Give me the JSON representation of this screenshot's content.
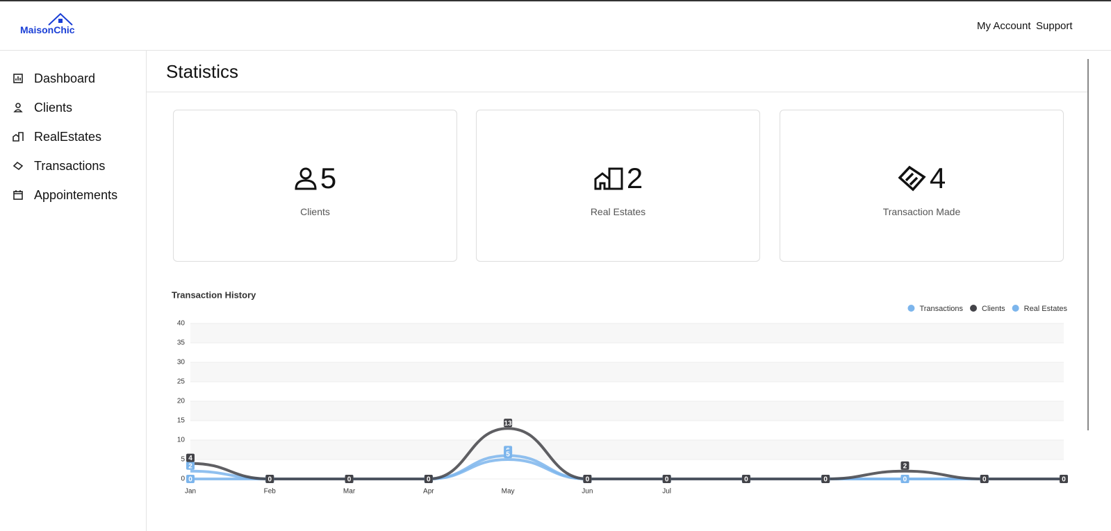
{
  "header": {
    "logo": "MaisonChic",
    "links": [
      "My Account",
      "Support"
    ]
  },
  "sidebar": {
    "items": [
      "Dashboard",
      "Clients",
      "RealEstates",
      "Transactions",
      "Appointements"
    ]
  },
  "page_title": "Statistics",
  "cards": [
    {
      "value": 5,
      "label": "Clients"
    },
    {
      "value": 2,
      "label": "Real Estates"
    },
    {
      "value": 4,
      "label": "Transaction Made"
    }
  ],
  "chart_data": {
    "type": "line",
    "title": "Transaction History",
    "categories": [
      "Jan",
      "Feb",
      "Mar",
      "Apr",
      "May",
      "Jun",
      "Jul",
      null,
      null,
      null,
      null,
      null
    ],
    "series": [
      {
        "name": "Transactions",
        "color": "#7cb5ec",
        "values": [
          0,
          0,
          0,
          0,
          6,
          0,
          0,
          0,
          0,
          0,
          0,
          0
        ]
      },
      {
        "name": "Clients",
        "color": "#434348",
        "values": [
          4,
          0,
          0,
          0,
          13,
          0,
          0,
          0,
          0,
          2,
          0,
          0
        ]
      },
      {
        "name": "Real Estates",
        "color": "#7cb5ec",
        "values": [
          2,
          0,
          0,
          0,
          5,
          0,
          0,
          0,
          0,
          0,
          0,
          0
        ]
      }
    ],
    "ylim": [
      0,
      40
    ],
    "yticks": [
      0,
      5,
      10,
      15,
      20,
      25,
      30,
      35,
      40
    ],
    "grid": true,
    "legend": "top-right",
    "data_labels": true
  }
}
